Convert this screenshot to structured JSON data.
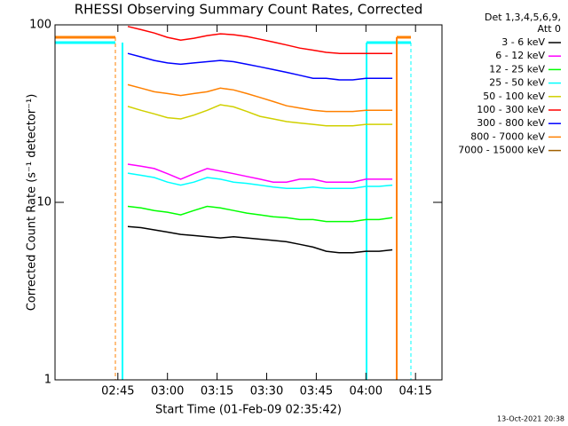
{
  "chart_data": {
    "type": "line",
    "title": "RHESSI Observing Summary Count Rates, Corrected",
    "ylabel": "Corrected Count Rate (s⁻¹ detector⁻¹)",
    "xlabel": "Start Time (01-Feb-09 02:35:42)",
    "legend_title": [
      "Det 1,3,4,5,6,9,",
      "Att 0"
    ],
    "footer": "13-Oct-2021 20:38",
    "log_y": true,
    "ylim": [
      1,
      100
    ],
    "yticks": [
      1,
      10,
      100
    ],
    "xlim": [
      146,
      263
    ],
    "xticks": [
      {
        "value": 165,
        "label": "02:45"
      },
      {
        "value": 180,
        "label": "03:00"
      },
      {
        "value": 195,
        "label": "03:15"
      },
      {
        "value": 210,
        "label": "03:30"
      },
      {
        "value": 225,
        "label": "03:45"
      },
      {
        "value": 240,
        "label": "04:00"
      },
      {
        "value": 255,
        "label": "04:15"
      }
    ],
    "x": [
      168,
      172,
      176,
      180,
      184,
      188,
      192,
      196,
      200,
      204,
      208,
      212,
      216,
      220,
      224,
      228,
      232,
      236,
      240,
      244,
      248
    ],
    "series": [
      {
        "name": "3 - 6 keV",
        "color": "#000000",
        "values": [
          7.3,
          7.2,
          7.0,
          6.8,
          6.6,
          6.5,
          6.4,
          6.3,
          6.4,
          6.3,
          6.2,
          6.1,
          6.0,
          5.8,
          5.6,
          5.3,
          5.2,
          5.2,
          5.3,
          5.3,
          5.4
        ]
      },
      {
        "name": "6 - 12 keV",
        "color": "#ff00ff",
        "values": [
          16.4,
          16,
          15.5,
          14.5,
          13.5,
          14.5,
          15.5,
          15,
          14.5,
          14,
          13.5,
          13,
          13,
          13.5,
          13.5,
          13,
          13,
          13,
          13.5,
          13.5,
          13.5
        ]
      },
      {
        "name": "12 - 25 keV",
        "color": "#00ff00",
        "values": [
          9.5,
          9.3,
          9,
          8.8,
          8.5,
          9,
          9.5,
          9.3,
          9,
          8.7,
          8.5,
          8.3,
          8.2,
          8,
          8,
          7.8,
          7.8,
          7.8,
          8,
          8,
          8.2
        ]
      },
      {
        "name": "25 - 50 keV",
        "color": "#00ffff",
        "values": [
          14.6,
          14.2,
          13.8,
          13,
          12.5,
          13,
          13.8,
          13.5,
          13,
          12.8,
          12.5,
          12.2,
          12,
          12,
          12.2,
          12,
          12,
          12,
          12.3,
          12.3,
          12.5
        ]
      },
      {
        "name": "50 - 100 keV",
        "color": "#d0d000",
        "values": [
          34.7,
          33,
          31.5,
          30,
          29.5,
          31,
          33,
          35.5,
          34.5,
          32.5,
          30.5,
          29.5,
          28.5,
          28,
          27.5,
          27,
          27,
          27,
          27.5,
          27.5,
          27.5
        ]
      },
      {
        "name": "100 - 300 keV",
        "color": "#ff0000",
        "values": [
          98,
          94,
          90,
          85,
          82,
          84,
          87,
          89,
          88,
          86,
          83,
          80,
          77,
          74,
          72,
          70,
          69,
          69,
          69,
          69,
          69
        ]
      },
      {
        "name": "300 - 800 keV",
        "color": "#0000ff",
        "values": [
          69,
          66,
          63,
          61,
          60,
          61,
          62,
          63,
          62,
          60,
          58,
          56,
          54,
          52,
          50,
          50,
          49,
          49,
          50,
          50,
          50
        ]
      },
      {
        "name": "800 - 7000 keV",
        "color": "#ff8000",
        "values": [
          46,
          44,
          42,
          41,
          40,
          41,
          42,
          44,
          43,
          41,
          39,
          37,
          35,
          34,
          33,
          32.5,
          32.5,
          32.5,
          33,
          33,
          33
        ]
      },
      {
        "name": "7000 - 15000 keV",
        "color": "#a06000",
        "values": [
          null,
          null,
          null,
          null,
          null,
          null,
          null,
          null,
          null,
          null,
          null,
          null,
          null,
          null,
          null,
          null,
          null,
          null,
          null,
          null,
          null
        ]
      }
    ]
  }
}
